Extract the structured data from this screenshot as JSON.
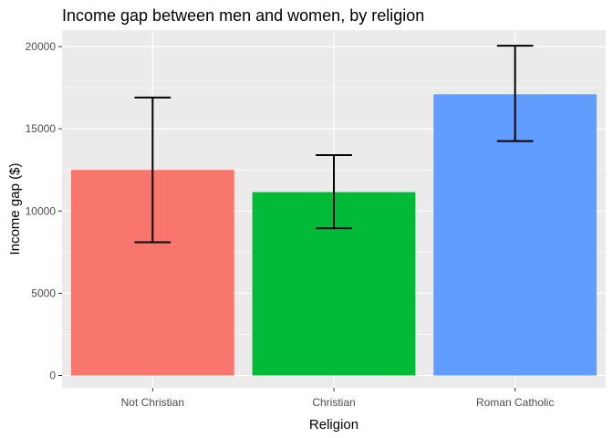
{
  "chart_data": {
    "type": "bar",
    "title": "Income gap between men and women, by religion",
    "xlabel": "Religion",
    "ylabel": "Income gap ($)",
    "categories": [
      "Not Christian",
      "Christian",
      "Roman Catholic"
    ],
    "values": [
      12500,
      11150,
      17100
    ],
    "error_low": [
      8100,
      8950,
      14250
    ],
    "error_high": [
      16900,
      13400,
      20050
    ],
    "colors": [
      "#F8766D",
      "#00BA38",
      "#619CFF"
    ],
    "ylim": [
      -750,
      21000
    ],
    "yticks": [
      0,
      5000,
      10000,
      15000,
      20000
    ],
    "ytick_labels": [
      "0",
      "5000",
      "10000",
      "15000",
      "20000"
    ],
    "grid": true,
    "background": "#EBEBEB",
    "legend": "none"
  }
}
